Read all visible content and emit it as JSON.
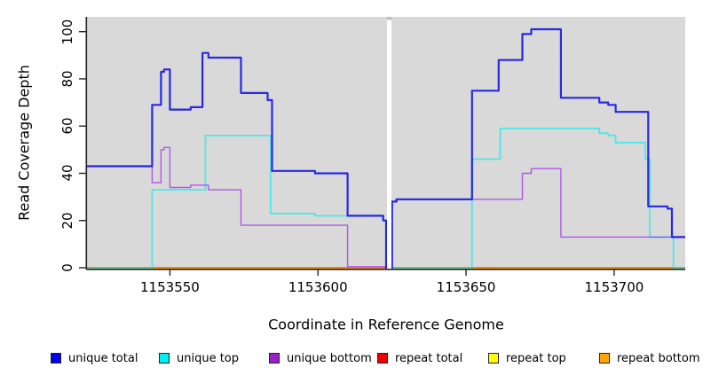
{
  "chart_data": {
    "type": "line",
    "subtype": "step-coverage",
    "title": "",
    "xlabel": "Coordinate in Reference Genome",
    "ylabel": "Read Coverage Depth",
    "x_range": [
      1153522,
      1153724
    ],
    "ylim": [
      0,
      105
    ],
    "y_ticks": [
      0,
      20,
      40,
      60,
      80,
      100
    ],
    "x_ticks": [
      1153550,
      1153600,
      1153650,
      1153700
    ],
    "grid": false,
    "panel_background": "#d9d9d9",
    "gap_region": {
      "start": 1153623.3,
      "end": 1153624.8,
      "color": "#ffffff"
    },
    "legend_position": "bottom",
    "series": [
      {
        "name": "repeat top",
        "color": "#f5f500",
        "opacity": 1,
        "width": 1.6,
        "segments": [
          {
            "end": 1153623.3,
            "steps": [
              [
                1153522,
                0
              ]
            ]
          },
          {
            "end": 1153724,
            "steps": [
              [
                1153624.8,
                0
              ]
            ]
          }
        ]
      },
      {
        "name": "repeat total",
        "color": "#dd0000",
        "opacity": 1,
        "width": 1.6,
        "segments": [
          {
            "end": 1153623.3,
            "steps": [
              [
                1153522,
                0
              ]
            ]
          },
          {
            "end": 1153724,
            "steps": [
              [
                1153624.8,
                0
              ]
            ]
          }
        ]
      },
      {
        "name": "repeat bottom",
        "color": "#ff8c00",
        "opacity": 1,
        "width": 1.8,
        "segments": [
          {
            "end": 1153623.3,
            "steps": [
              [
                1153522,
                0
              ]
            ]
          },
          {
            "end": 1153724,
            "steps": [
              [
                1153624.8,
                0
              ]
            ]
          }
        ]
      },
      {
        "name": "unique top",
        "color": "#00eeee",
        "opacity": 0.65,
        "width": 1.8,
        "segments": [
          {
            "end": 1153623.3,
            "steps": [
              [
                1153522,
                0
              ],
              [
                1153544,
                33
              ],
              [
                1153562,
                56
              ],
              [
                1153584,
                23
              ],
              [
                1153599,
                22
              ],
              [
                1153622,
                20
              ],
              [
                1153623,
                0
              ]
            ]
          },
          {
            "end": 1153724,
            "steps": [
              [
                1153624.8,
                0
              ],
              [
                1153652,
                46
              ],
              [
                1153661.5,
                59
              ],
              [
                1153695,
                57
              ],
              [
                1153698,
                56
              ],
              [
                1153700.5,
                53
              ],
              [
                1153710.5,
                46
              ],
              [
                1153712,
                13
              ],
              [
                1153720,
                0
              ]
            ]
          }
        ]
      },
      {
        "name": "unique bottom",
        "color": "#a020f0",
        "opacity": 0.7,
        "width": 1.4,
        "segments": [
          {
            "end": 1153623.3,
            "steps": [
              [
                1153522,
                43
              ],
              [
                1153544,
                36
              ],
              [
                1153547,
                50
              ],
              [
                1153548,
                51
              ],
              [
                1153550,
                34
              ],
              [
                1153557,
                35
              ],
              [
                1153563,
                33
              ],
              [
                1153574,
                18
              ],
              [
                1153610,
                0
              ]
            ]
          },
          {
            "end": 1153724,
            "steps": [
              [
                1153624.8,
                0
              ],
              [
                1153625,
                28
              ],
              [
                1153626.5,
                29
              ],
              [
                1153669,
                40
              ],
              [
                1153672,
                42
              ],
              [
                1153682,
                13
              ]
            ]
          }
        ]
      },
      {
        "name": "unique total",
        "color": "#1a1ae6",
        "opacity": 0.92,
        "width": 2.2,
        "segments": [
          {
            "end": 1153623.3,
            "steps": [
              [
                1153522,
                43
              ],
              [
                1153544,
                69
              ],
              [
                1153547,
                83
              ],
              [
                1153548,
                84
              ],
              [
                1153550,
                67
              ],
              [
                1153557,
                68
              ],
              [
                1153561,
                91
              ],
              [
                1153563,
                89
              ],
              [
                1153574,
                74
              ],
              [
                1153583,
                71
              ],
              [
                1153584.5,
                41
              ],
              [
                1153599,
                40
              ],
              [
                1153610,
                22
              ],
              [
                1153622,
                20
              ],
              [
                1153623,
                0
              ]
            ]
          },
          {
            "end": 1153724,
            "steps": [
              [
                1153624.8,
                0
              ],
              [
                1153625,
                28
              ],
              [
                1153626.5,
                29
              ],
              [
                1153652,
                75
              ],
              [
                1153661,
                88
              ],
              [
                1153669,
                99
              ],
              [
                1153672,
                101
              ],
              [
                1153682,
                72
              ],
              [
                1153695,
                70
              ],
              [
                1153698,
                69
              ],
              [
                1153700.5,
                66
              ],
              [
                1153711.5,
                26
              ],
              [
                1153718,
                25
              ],
              [
                1153719.5,
                13
              ]
            ]
          }
        ]
      }
    ],
    "legend": [
      {
        "label": "unique total",
        "color": "#0000ee"
      },
      {
        "label": "unique top",
        "color": "#00eeee"
      },
      {
        "label": "unique bottom",
        "color": "#9922cc"
      },
      {
        "label": "repeat total",
        "color": "#ee0000"
      },
      {
        "label": "repeat top",
        "color": "#ffff00"
      },
      {
        "label": "repeat bottom",
        "color": "#ffa500"
      }
    ]
  }
}
